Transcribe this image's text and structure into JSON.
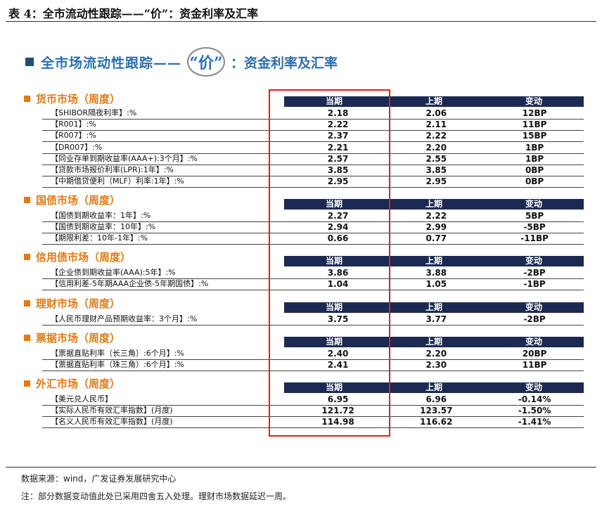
{
  "top_title": "表 4：全市流动性跟踪——“价”：资金利率及汇率",
  "banner": {
    "left": "全市场流动性跟踪——",
    "ring": "“价”",
    "right": "：资金利率及汇率"
  },
  "columns": [
    "当期",
    "上期",
    "变动"
  ],
  "sections": [
    {
      "title": "货币市场（周度）",
      "rows": [
        {
          "label": "【SHIBOR隔夜利率】:%",
          "cur": "2.18",
          "prev": "2.06",
          "chg": "12BP"
        },
        {
          "label": "【R001】:%",
          "cur": "2.22",
          "prev": "2.11",
          "chg": "11BP"
        },
        {
          "label": "【R007】:%",
          "cur": "2.37",
          "prev": "2.22",
          "chg": "15BP"
        },
        {
          "label": "【DR007】:%",
          "cur": "2.21",
          "prev": "2.20",
          "chg": "1BP"
        },
        {
          "label": "【同业存单到期收益率(AAA+):3个月】:%",
          "cur": "2.57",
          "prev": "2.55",
          "chg": "1BP"
        },
        {
          "label": "【贷款市场报价利率(LPR):1年】:%",
          "cur": "3.85",
          "prev": "3.85",
          "chg": "0BP"
        },
        {
          "label": "【中期借贷便利（MLF）利率:1年】:%",
          "cur": "2.95",
          "prev": "2.95",
          "chg": "0BP"
        }
      ]
    },
    {
      "title": "国债市场（周度）",
      "rows": [
        {
          "label": "【国债到期收益率：1年】:%",
          "cur": "2.27",
          "prev": "2.22",
          "chg": "5BP"
        },
        {
          "label": "【国债到期收益率：10年】:%",
          "cur": "2.94",
          "prev": "2.99",
          "chg": "-5BP"
        },
        {
          "label": "【期限利差：10年-1年】:%",
          "cur": "0.66",
          "prev": "0.77",
          "chg": "-11BP"
        }
      ]
    },
    {
      "title": "信用债市场（周度）",
      "rows": [
        {
          "label": "【企业债到期收益率(AAA):5年】:%",
          "cur": "3.86",
          "prev": "3.88",
          "chg": "-2BP"
        },
        {
          "label": "【信用利差-5年期AAA企业债-5年期国债】:%",
          "cur": "1.04",
          "prev": "1.05",
          "chg": "-1BP"
        }
      ]
    },
    {
      "title": "理财市场（周度）",
      "rows": [
        {
          "label": "【人民币理财产品预期收益率：3个月】:%",
          "cur": "3.75",
          "prev": "3.77",
          "chg": "-2BP"
        }
      ]
    },
    {
      "title": "票据市场（周度）",
      "rows": [
        {
          "label": "【票据直贴利率（长三角）:6个月】:%",
          "cur": "2.40",
          "prev": "2.20",
          "chg": "20BP"
        },
        {
          "label": "【票据直贴利率（珠三角）:6个月】:%",
          "cur": "2.41",
          "prev": "2.30",
          "chg": "11BP"
        }
      ]
    },
    {
      "title": "外汇市场（周度）",
      "rows": [
        {
          "label": "【美元兑人民币】",
          "cur": "6.95",
          "prev": "6.96",
          "chg": "-0.14%"
        },
        {
          "label": "【实际人民币有效汇率指数】(月度)",
          "cur": "121.72",
          "prev": "123.57",
          "chg": "-1.50%"
        },
        {
          "label": "【名义人民币有效汇率指数】(月度)",
          "cur": "114.98",
          "prev": "116.62",
          "chg": "-1.41%"
        }
      ]
    }
  ],
  "source": "数据来源：wind，广发证券发展研究中心",
  "note": "注：部分数据变动值此处已采用四舍五入处理。理财市场数据延迟一周。",
  "colors": {
    "header_bg": "#1c2a52",
    "section_title": "#e07b16",
    "banner": "#2c6fb0",
    "highlight_box": "#e02020"
  }
}
